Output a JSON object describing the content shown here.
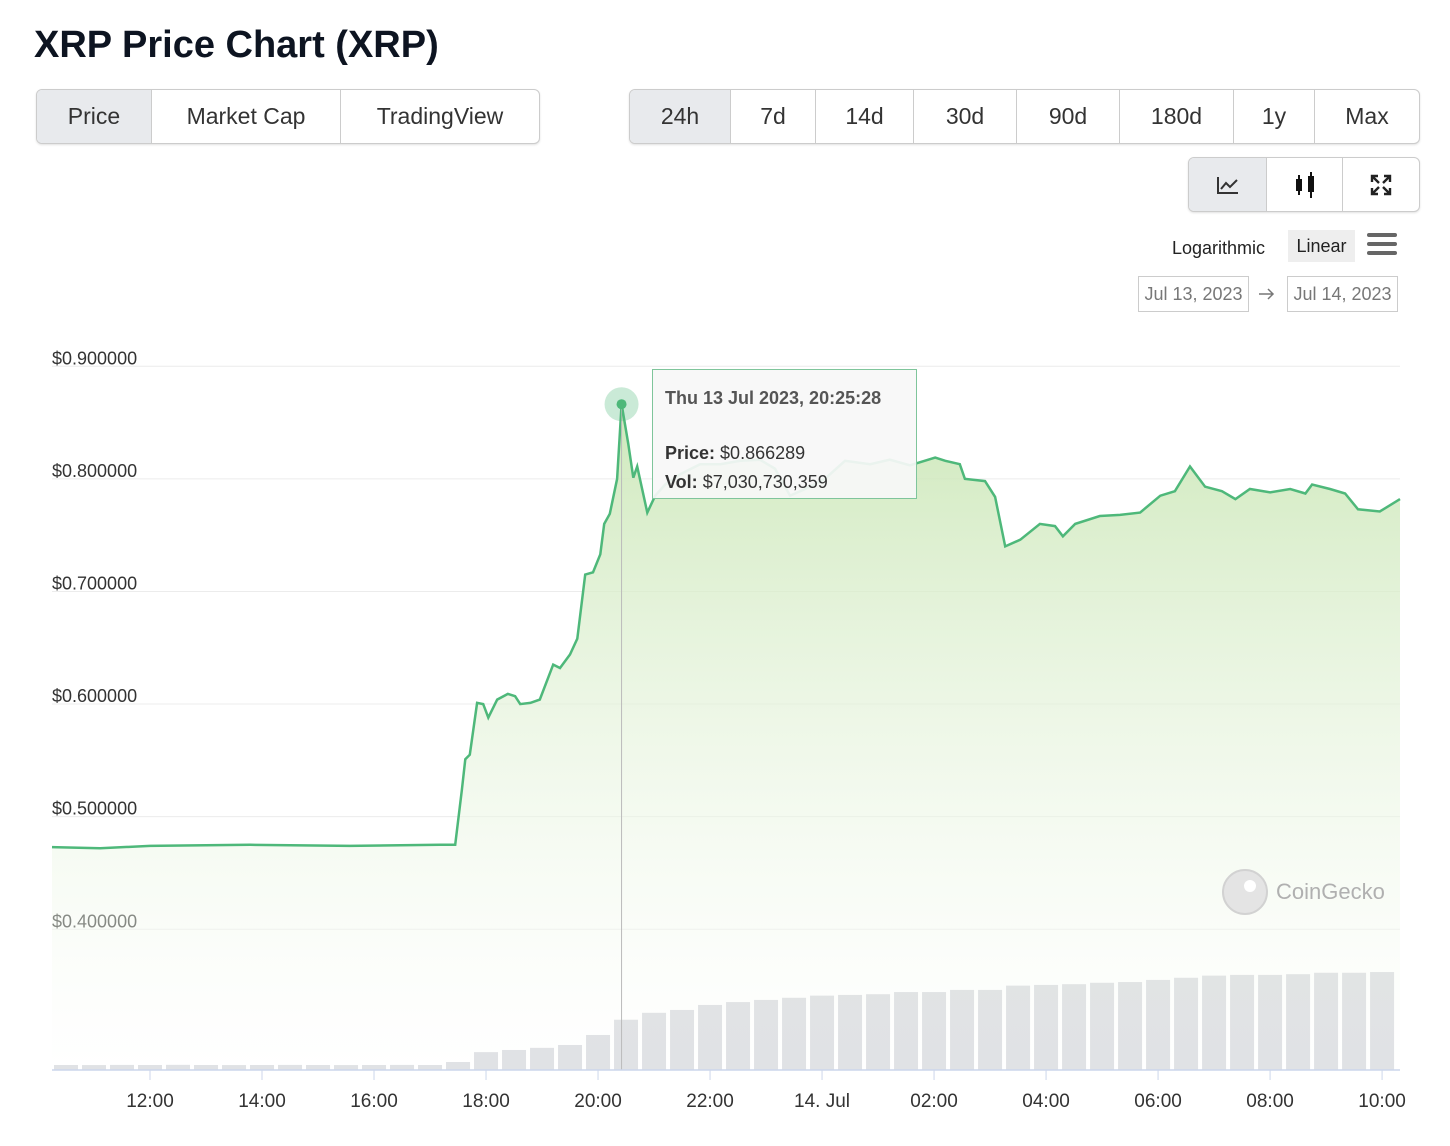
{
  "title": "XRP Price Chart (XRP)",
  "tabs": [
    "Price",
    "Market Cap",
    "TradingView"
  ],
  "ranges": [
    "24h",
    "7d",
    "14d",
    "30d",
    "90d",
    "180d",
    "1y",
    "Max"
  ],
  "scale_options": [
    "Logarithmic",
    "Linear"
  ],
  "date_from": "Jul 13, 2023",
  "date_to": "Jul 14, 2023",
  "watermark": "CoinGecko",
  "tooltip": {
    "time": "Thu 13 Jul 2023, 20:25:28",
    "price_label": "Price:",
    "price": "$0.866289",
    "vol_label": "Vol:",
    "vol": "$7,030,730,359"
  },
  "chart_data": {
    "type": "line",
    "xlim": [
      10.25,
      34.32
    ],
    "xticks": [
      {
        "value": 12,
        "label": "12:00"
      },
      {
        "value": 14,
        "label": "14:00"
      },
      {
        "value": 16,
        "label": "16:00"
      },
      {
        "value": 18,
        "label": "18:00"
      },
      {
        "value": 20,
        "label": "20:00"
      },
      {
        "value": 22,
        "label": "22:00"
      },
      {
        "value": 24,
        "label": "14. Jul"
      },
      {
        "value": 26,
        "label": "02:00"
      },
      {
        "value": 28,
        "label": "04:00"
      },
      {
        "value": 30,
        "label": "06:00"
      },
      {
        "value": 32,
        "label": "08:00"
      },
      {
        "value": 34,
        "label": "10:00"
      }
    ],
    "ylim": [
      0.275,
      0.91
    ],
    "yticks": [
      {
        "value": 0.4,
        "label": "$0.400000"
      },
      {
        "value": 0.5,
        "label": "$0.500000"
      },
      {
        "value": 0.6,
        "label": "$0.600000"
      },
      {
        "value": 0.7,
        "label": "$0.700000"
      },
      {
        "value": 0.8,
        "label": "$0.800000"
      },
      {
        "value": 0.9,
        "label": "$0.900000"
      }
    ],
    "y2lim": [
      0,
      100000000000
    ],
    "grid": true,
    "series": [
      {
        "color": "#4eb87a",
        "x": [
          10.25,
          11.11,
          12.0,
          13.79,
          15.57,
          17.18,
          17.45,
          17.57,
          17.63,
          17.71,
          17.84,
          17.95,
          18.04,
          18.2,
          18.39,
          18.52,
          18.61,
          18.79,
          18.96,
          19.2,
          19.32,
          19.5,
          19.63,
          19.77,
          19.91,
          20.04,
          20.11,
          20.21,
          20.34,
          20.42,
          20.54,
          20.63,
          20.7,
          20.88,
          21.02,
          21.2,
          21.46,
          21.82,
          22.18,
          22.54,
          22.89,
          23.16,
          23.43,
          23.7,
          24.05,
          24.41,
          24.86,
          25.21,
          25.57,
          26.02,
          26.2,
          26.46,
          26.55,
          26.91,
          27.09,
          27.27,
          27.54,
          27.89,
          28.16,
          28.3,
          28.52,
          28.96,
          29.32,
          29.68,
          30.04,
          30.3,
          30.57,
          30.84,
          31.14,
          31.38,
          31.64,
          32.0,
          32.36,
          32.63,
          32.75,
          33.07,
          33.34,
          33.57,
          33.96,
          34.32
        ],
        "values": [
          0.473,
          0.472,
          0.474,
          0.475,
          0.474,
          0.475,
          0.475,
          0.524,
          0.551,
          0.555,
          0.601,
          0.6,
          0.588,
          0.604,
          0.609,
          0.607,
          0.6,
          0.601,
          0.604,
          0.635,
          0.632,
          0.644,
          0.658,
          0.715,
          0.717,
          0.733,
          0.76,
          0.769,
          0.8,
          0.866289,
          0.831,
          0.801,
          0.811,
          0.77,
          0.785,
          0.795,
          0.804,
          0.813,
          0.813,
          0.816,
          0.817,
          0.809,
          0.785,
          0.791,
          0.8,
          0.816,
          0.813,
          0.817,
          0.812,
          0.819,
          0.816,
          0.813,
          0.8,
          0.798,
          0.784,
          0.74,
          0.746,
          0.76,
          0.758,
          0.749,
          0.76,
          0.767,
          0.768,
          0.77,
          0.785,
          0.789,
          0.811,
          0.793,
          0.789,
          0.782,
          0.791,
          0.788,
          0.791,
          0.787,
          0.795,
          0.791,
          0.787,
          0.773,
          0.771,
          0.782
        ]
      },
      {
        "color": "#d3d5da",
        "axis": "y2",
        "x": [
          10.5,
          11,
          11.5,
          12,
          12.5,
          13,
          13.5,
          14,
          14.5,
          15,
          15.5,
          16,
          16.5,
          17,
          17.5,
          18,
          18.5,
          19,
          19.5,
          20,
          20.5,
          21,
          21.5,
          22,
          22.5,
          23,
          23.5,
          24,
          24.5,
          25,
          25.5,
          26,
          26.5,
          27,
          27.5,
          28,
          28.5,
          29,
          29.5,
          30,
          30.5,
          31,
          31.5,
          32,
          32.5,
          33,
          33.5,
          34
        ],
        "values": [
          700000000,
          690000000,
          710000000,
          700000000,
          720000000,
          700000000,
          690000000,
          700000000,
          710000000,
          700000000,
          690000000,
          700000000,
          710000000,
          700000000,
          1120000000,
          2500000000,
          2800000000,
          3100000000,
          3500000000,
          4900000000,
          7030730359,
          8000000000,
          8400000000,
          9100000000,
          9500000000,
          9800000000,
          10100000000,
          10400000000,
          10500000000,
          10600000000,
          10900000000,
          10900000000,
          11200000000,
          11200000000,
          11800000000,
          11900000000,
          12000000000,
          12200000000,
          12300000000,
          12600000000,
          12900000000,
          13200000000,
          13300000000,
          13300000000,
          13400000000,
          13600000000,
          13600000000,
          13700000000
        ]
      }
    ]
  }
}
